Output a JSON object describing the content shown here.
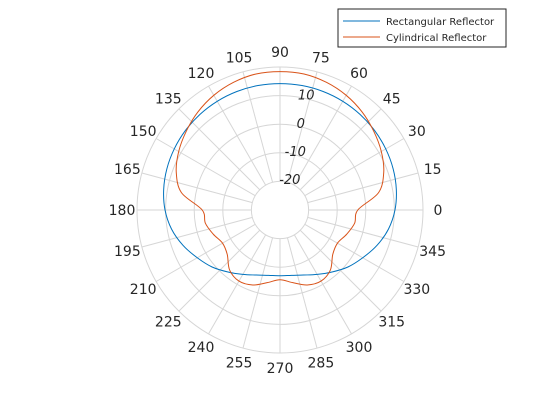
{
  "chart_data": {
    "type": "polar-line",
    "title": "",
    "theta_unit": "degrees",
    "theta_ticks": [
      0,
      15,
      30,
      45,
      60,
      75,
      90,
      105,
      120,
      135,
      150,
      165,
      180,
      195,
      210,
      225,
      240,
      255,
      270,
      285,
      300,
      315,
      330,
      345
    ],
    "r_ticks": [
      -20,
      -10,
      0,
      10
    ],
    "rlim": [
      -30,
      20
    ],
    "grid": true,
    "legend_position": "top-right",
    "series": [
      {
        "name": "Rectangular Reflector",
        "color": "#0072BD",
        "theta": [
          0,
          10,
          20,
          30,
          40,
          50,
          60,
          70,
          80,
          90,
          100,
          110,
          120,
          130,
          140,
          150,
          160,
          170,
          180,
          190,
          200,
          210,
          220,
          230,
          240,
          250,
          260,
          270,
          280,
          290,
          300,
          310,
          320,
          330,
          340,
          350,
          360
        ],
        "r": [
          10.2,
          11.3,
          12.1,
          12.7,
          13.2,
          13.6,
          13.9,
          14.1,
          14.2,
          14.2,
          14.2,
          14.1,
          13.9,
          13.6,
          13.2,
          12.7,
          12.1,
          11.3,
          10.2,
          8.5,
          6.1,
          3.4,
          1.0,
          -1.7,
          -4.0,
          -5.8,
          -6.8,
          -7.0,
          -6.8,
          -5.8,
          -4.0,
          -1.7,
          1.0,
          3.4,
          6.1,
          8.5,
          10.2
        ]
      },
      {
        "name": "Cylindrical Reflector",
        "color": "#D95319",
        "theta": [
          0,
          10,
          20,
          30,
          40,
          50,
          60,
          70,
          80,
          90,
          100,
          110,
          120,
          130,
          140,
          150,
          160,
          170,
          180,
          190,
          200,
          210,
          220,
          230,
          240,
          250,
          260,
          270,
          280,
          290,
          300,
          310,
          320,
          330,
          340,
          350,
          360
        ],
        "r": [
          -2.8,
          5.0,
          8.6,
          10.9,
          12.8,
          14.7,
          16.3,
          17.5,
          18.3,
          18.4,
          18.3,
          17.5,
          16.3,
          14.7,
          12.8,
          10.9,
          8.6,
          5.0,
          -2.8,
          -3.5,
          -5.2,
          -6.8,
          -5.9,
          -2.6,
          -1.3,
          -2.1,
          -4.2,
          -5.6,
          -4.2,
          -2.1,
          -1.3,
          -2.6,
          -5.9,
          -6.8,
          -5.2,
          -3.5,
          -2.8
        ]
      }
    ]
  }
}
